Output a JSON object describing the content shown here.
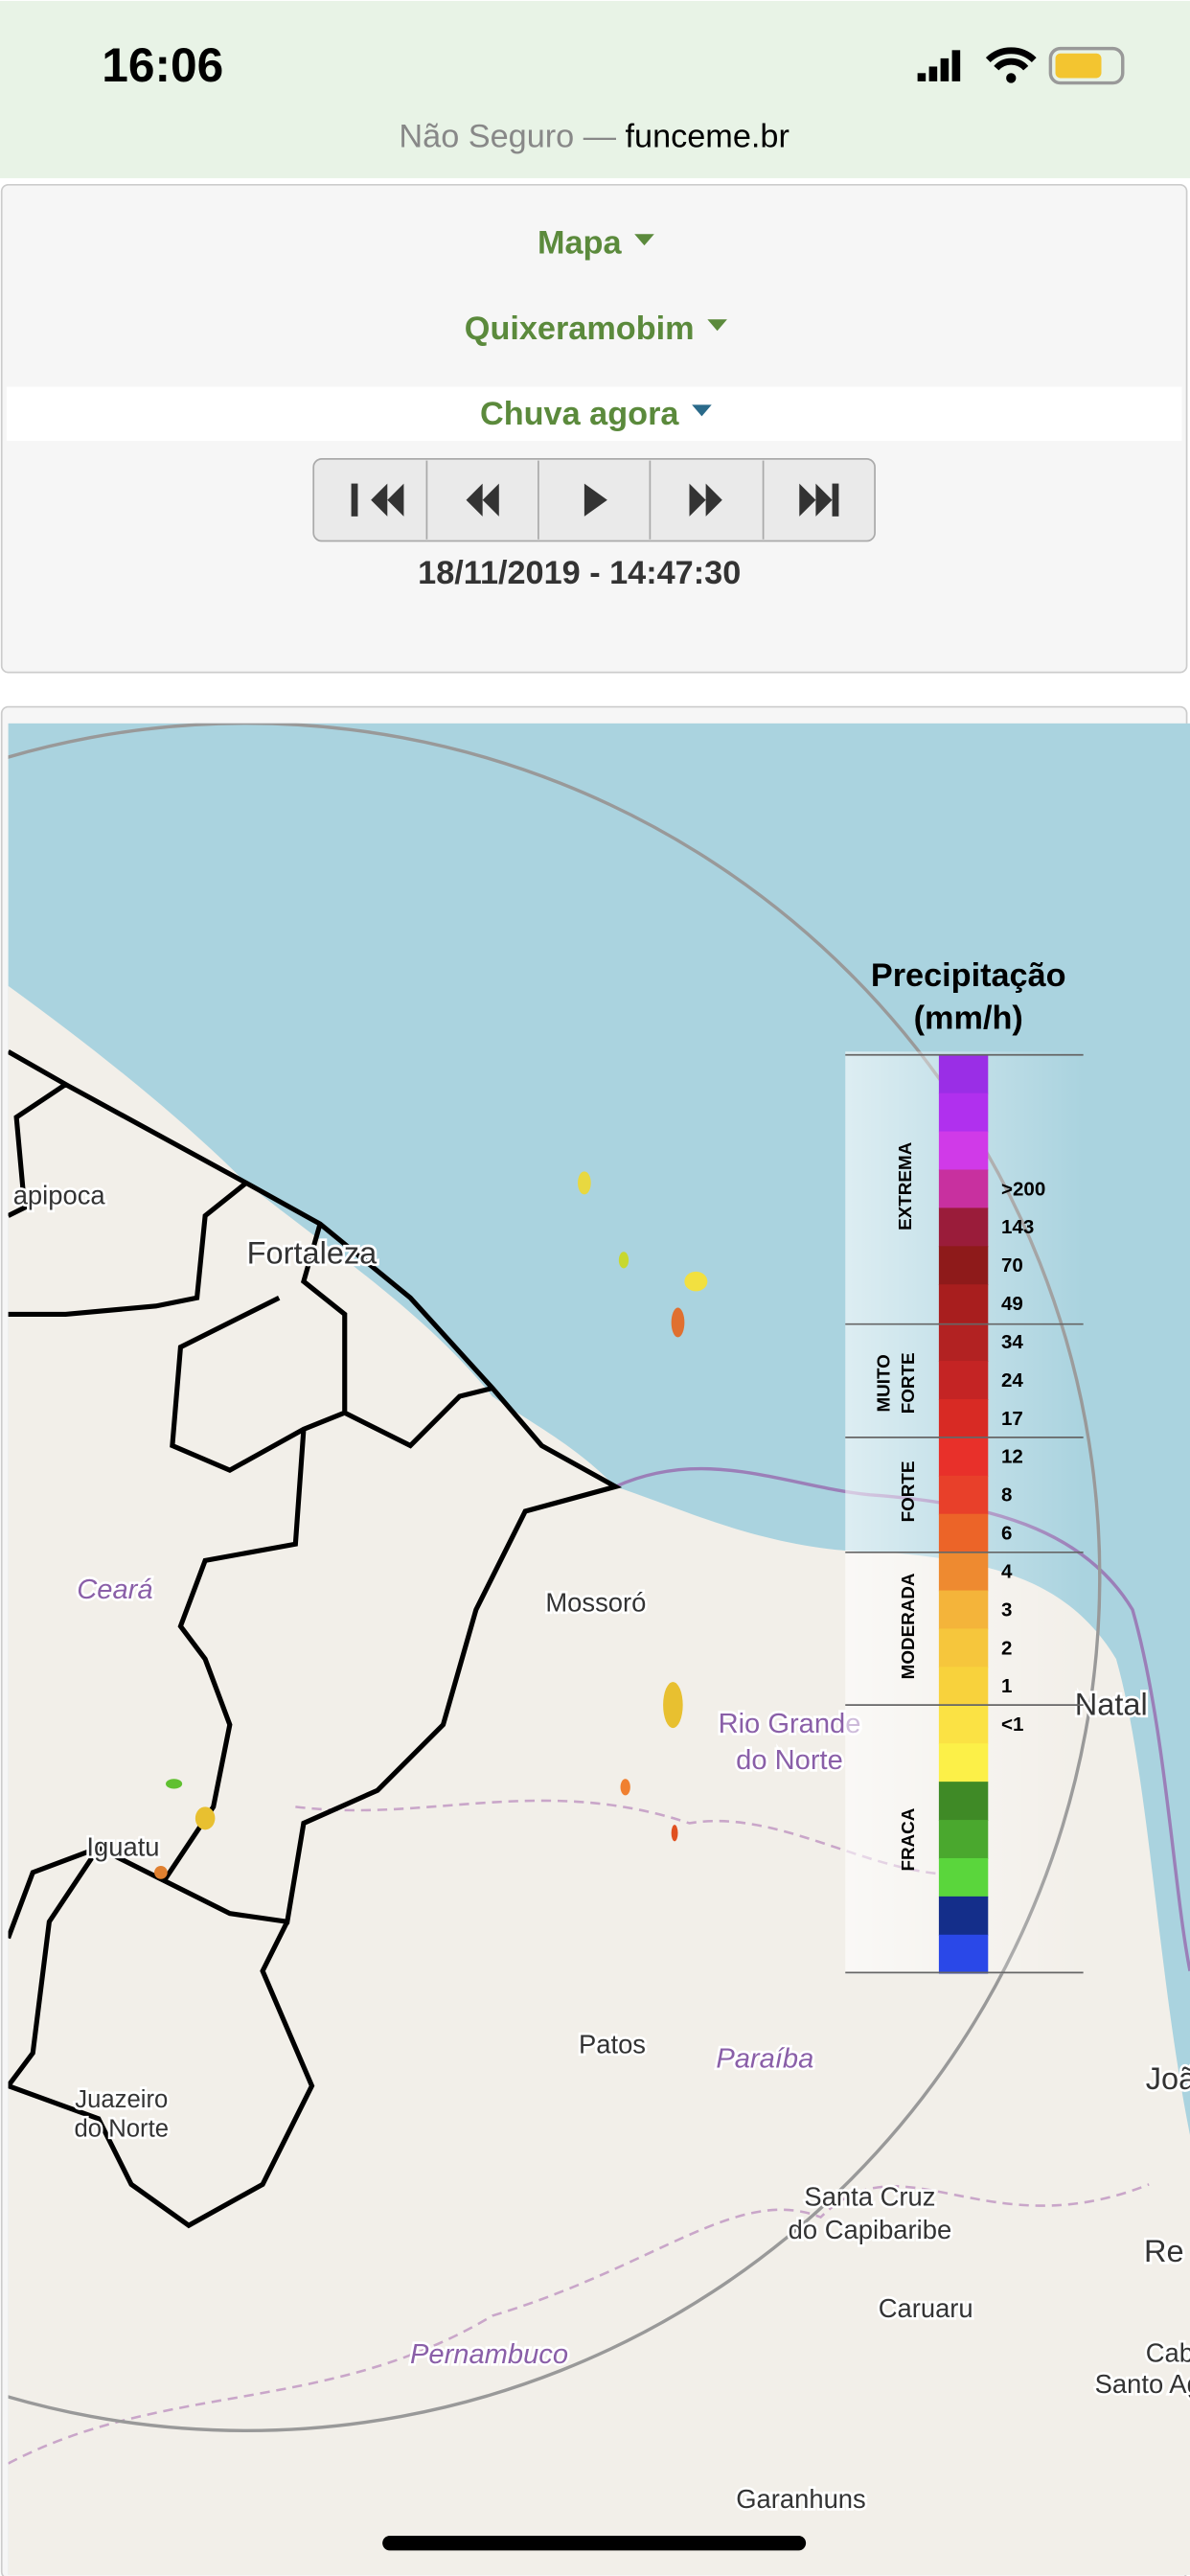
{
  "status_bar": {
    "time": "16:06"
  },
  "address_bar": {
    "security": "Não Seguro —",
    "domain": "funceme.br"
  },
  "controls": {
    "menus": [
      "Mapa",
      "Quixeramobim",
      "Chuva agora"
    ],
    "timestamp": "18/11/2019 - 14:47:30"
  },
  "map": {
    "labels": [
      "apipoca",
      "Fortaleza",
      "Ceará",
      "Mossoró",
      "Rio Grande",
      "do Norte",
      "Natal",
      "Iguatu",
      "Juazeiro",
      "do Norte",
      "Patos",
      "Paraíba",
      "João P",
      "Santa Cruz",
      "do Capibaribe",
      "Caruaru",
      "Re",
      "Cabo d",
      "Santo Agos",
      "Pernambuco",
      "Garanhuns"
    ],
    "legend": {
      "title": "Precipitação",
      "unit": "(mm/h)",
      "classes": [
        "EXTREMA",
        "MUITO",
        "FORTE",
        "FORTE",
        "MODERADA",
        "FRACA"
      ],
      "values": [
        ">200",
        "143",
        "70",
        "49",
        "34",
        "24",
        "17",
        "12",
        "8",
        "6",
        "4",
        "3",
        "2",
        "1",
        "<1"
      ]
    }
  }
}
